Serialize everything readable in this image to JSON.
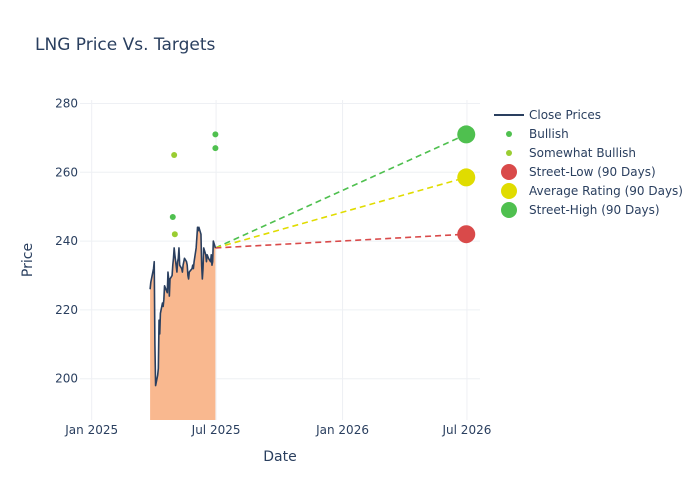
{
  "chart_data": {
    "type": "line",
    "title": "LNG Price Vs. Targets",
    "xlabel": "Date",
    "ylabel": "Price",
    "xlim": [
      "2024-12-15",
      "2026-07-20"
    ],
    "ylim": [
      188,
      281
    ],
    "x_ticks": [
      {
        "date": "2025-01-01",
        "label": "Jan 2025"
      },
      {
        "date": "2025-07-01",
        "label": "Jul 2025"
      },
      {
        "date": "2026-01-01",
        "label": "Jan 2026"
      },
      {
        "date": "2026-07-01",
        "label": "Jul 2026"
      }
    ],
    "y_ticks": [
      200,
      220,
      240,
      260,
      280
    ],
    "grid": true,
    "legend_position": "top-right",
    "colors": {
      "close": "#2a3f5f",
      "fill": "#f9b88f",
      "bullish": "#4fc04f",
      "somewhat_bullish": "#9acd32",
      "street_low": "#d94a4a",
      "average": "#e0dc00",
      "street_high": "#4fc04f"
    },
    "series": [
      {
        "name": "Close Prices",
        "kind": "line_fill",
        "points": [
          [
            "2025-03-27",
            226
          ],
          [
            "2025-03-28",
            228
          ],
          [
            "2025-03-31",
            231
          ],
          [
            "2025-04-01",
            232
          ],
          [
            "2025-04-02",
            234
          ],
          [
            "2025-04-03",
            210
          ],
          [
            "2025-04-04",
            198
          ],
          [
            "2025-04-07",
            201
          ],
          [
            "2025-04-08",
            203
          ],
          [
            "2025-04-09",
            217
          ],
          [
            "2025-04-10",
            213
          ],
          [
            "2025-04-11",
            219
          ],
          [
            "2025-04-14",
            222
          ],
          [
            "2025-04-15",
            221
          ],
          [
            "2025-04-16",
            223
          ],
          [
            "2025-04-17",
            227
          ],
          [
            "2025-04-21",
            225
          ],
          [
            "2025-04-22",
            231
          ],
          [
            "2025-04-23",
            229
          ],
          [
            "2025-04-24",
            224
          ],
          [
            "2025-04-25",
            229
          ],
          [
            "2025-04-28",
            230
          ],
          [
            "2025-04-29",
            233
          ],
          [
            "2025-04-30",
            235
          ],
          [
            "2025-05-01",
            238
          ],
          [
            "2025-05-02",
            236
          ],
          [
            "2025-05-05",
            231
          ],
          [
            "2025-05-06",
            234
          ],
          [
            "2025-05-07",
            235
          ],
          [
            "2025-05-08",
            238
          ],
          [
            "2025-05-09",
            233
          ],
          [
            "2025-05-12",
            232
          ],
          [
            "2025-05-13",
            231
          ],
          [
            "2025-05-14",
            233
          ],
          [
            "2025-05-15",
            234
          ],
          [
            "2025-05-16",
            235
          ],
          [
            "2025-05-19",
            234
          ],
          [
            "2025-05-20",
            233
          ],
          [
            "2025-05-21",
            230
          ],
          [
            "2025-05-22",
            229
          ],
          [
            "2025-05-23",
            231
          ],
          [
            "2025-05-27",
            232
          ],
          [
            "2025-05-28",
            233
          ],
          [
            "2025-05-29",
            232
          ],
          [
            "2025-05-30",
            234
          ],
          [
            "2025-06-02",
            238
          ],
          [
            "2025-06-03",
            241
          ],
          [
            "2025-06-04",
            244
          ],
          [
            "2025-06-05",
            243
          ],
          [
            "2025-06-06",
            244
          ],
          [
            "2025-06-09",
            242
          ],
          [
            "2025-06-10",
            233
          ],
          [
            "2025-06-11",
            229
          ],
          [
            "2025-06-12",
            232
          ],
          [
            "2025-06-13",
            238
          ],
          [
            "2025-06-16",
            236
          ],
          [
            "2025-06-17",
            234
          ],
          [
            "2025-06-18",
            236
          ],
          [
            "2025-06-20",
            235
          ],
          [
            "2025-06-23",
            234
          ],
          [
            "2025-06-24",
            236
          ],
          [
            "2025-06-25",
            233
          ],
          [
            "2025-06-26",
            234
          ],
          [
            "2025-06-27",
            240
          ],
          [
            "2025-06-30",
            238
          ]
        ]
      },
      {
        "name": "Bullish",
        "kind": "markers",
        "points": [
          [
            "2025-04-29",
            247
          ],
          [
            "2025-06-30",
            271
          ],
          [
            "2025-06-30",
            267
          ]
        ]
      },
      {
        "name": "Somewhat Bullish",
        "kind": "markers",
        "points": [
          [
            "2025-05-01",
            265
          ],
          [
            "2025-05-02",
            242
          ]
        ]
      },
      {
        "name": "Street-Low (90 Days)",
        "kind": "target",
        "from": [
          "2025-06-30",
          238
        ],
        "to": [
          "2026-06-30",
          242
        ]
      },
      {
        "name": "Average Rating (90 Days)",
        "kind": "target",
        "from": [
          "2025-06-30",
          238
        ],
        "to": [
          "2026-06-30",
          258.5
        ]
      },
      {
        "name": "Street-High (90 Days)",
        "kind": "target",
        "from": [
          "2025-06-30",
          238
        ],
        "to": [
          "2026-06-30",
          271
        ]
      }
    ]
  }
}
